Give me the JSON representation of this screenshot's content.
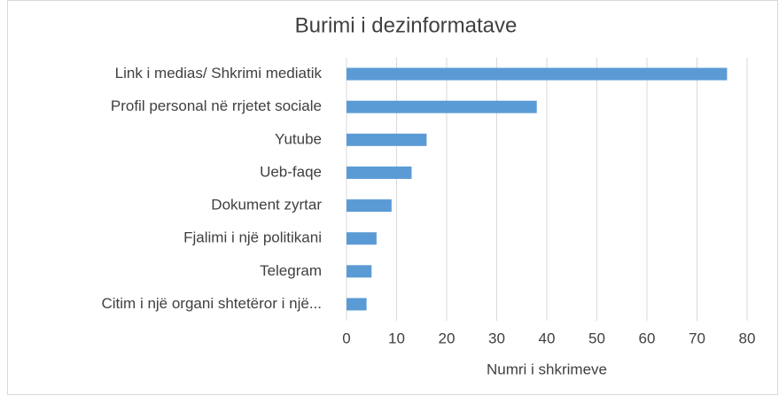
{
  "chart_data": {
    "type": "bar",
    "orientation": "horizontal",
    "title": "Burimi i dezinformatave",
    "x_label": "Numri i shkrimeve",
    "categories": [
      "Link i medias/ Shkrimi mediatik",
      "Profil personal në rrjetet sociale",
      "Yutube",
      "Ueb-faqe",
      "Dokument zyrtar",
      "Fjalimi i një politikani",
      "Telegram",
      "Citim i një organi shtetëror i një..."
    ],
    "values": [
      76,
      38,
      16,
      13,
      9,
      6,
      5,
      4
    ],
    "color": "#5b9bd5",
    "xlim": [
      0,
      80
    ],
    "xticks": [
      0,
      10,
      20,
      30,
      40,
      50,
      60,
      70,
      80
    ],
    "grid": true
  }
}
